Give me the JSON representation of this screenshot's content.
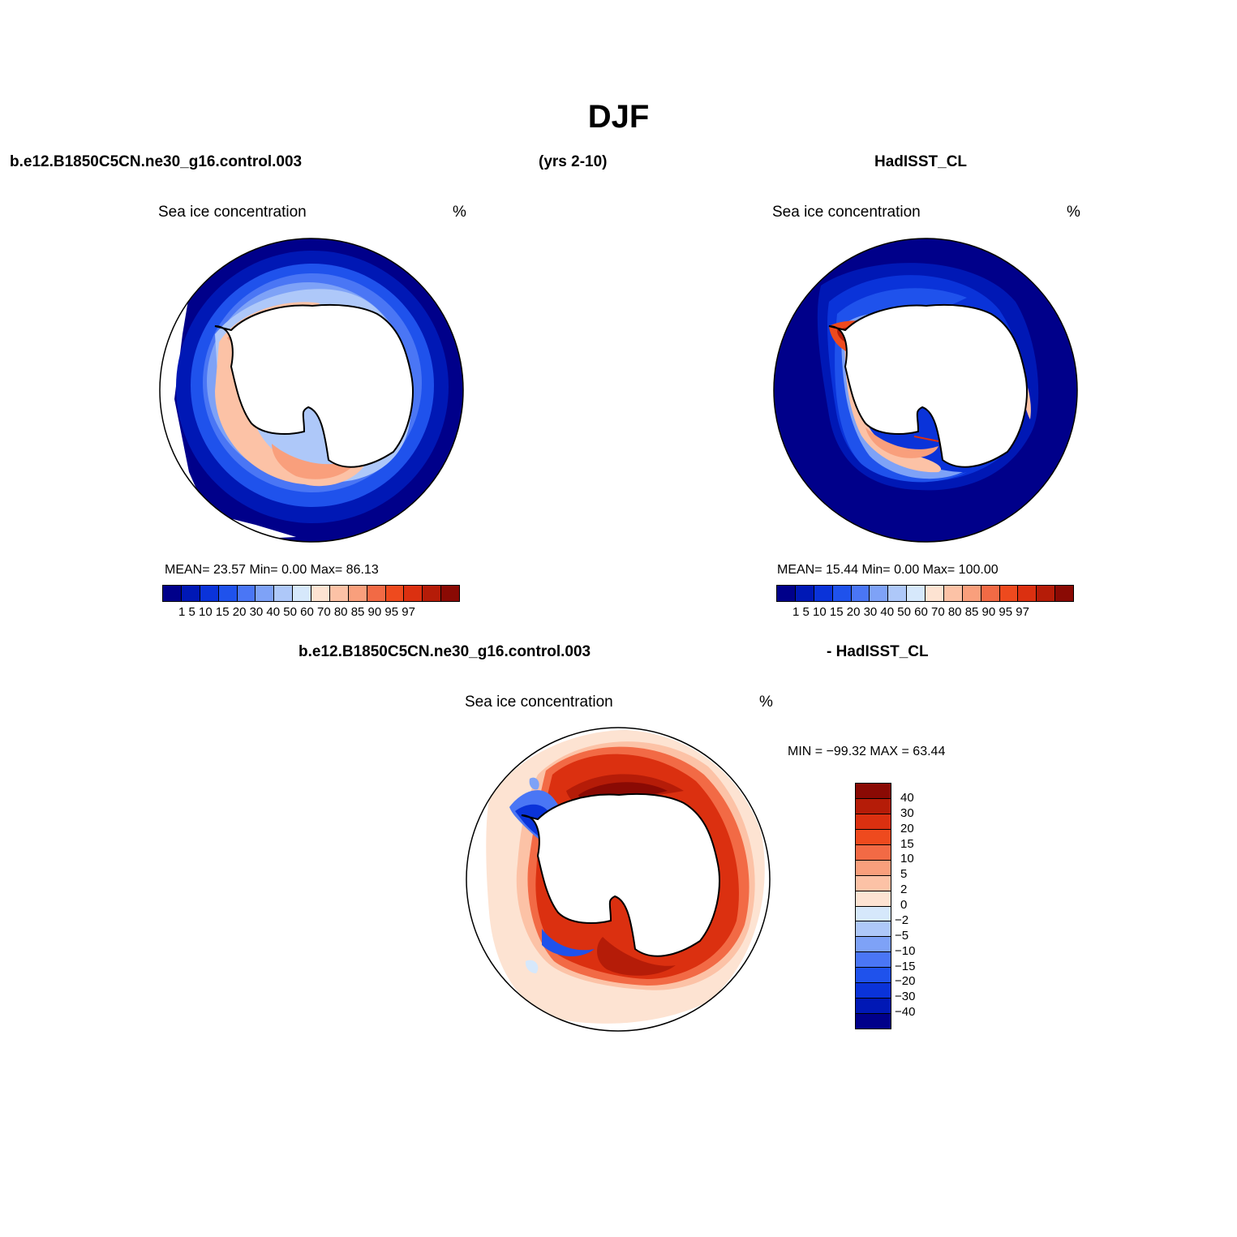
{
  "figure": {
    "title": "DJF",
    "case_name": "b.e12.B1850C5CN.ne30_g16.control.003",
    "years": "(yrs 2-10)",
    "obs_name": "HadISST_CL",
    "diff_case": "b.e12.B1850C5CN.ne30_g16.control.003",
    "diff_obs": "- HadISST_CL"
  },
  "panels": {
    "model": {
      "title": "Sea ice concentration",
      "unit": "%",
      "stats": "MEAN=   23.57   Min=    0.00   Max=   86.13",
      "colorbar_ticks": "1   5  10 15 20 30 40 50 60 70 80 85 90 95 97"
    },
    "obs": {
      "title": "Sea ice concentration",
      "unit": "%",
      "stats": "MEAN=   15.44   Min=    0.00   Max=  100.00",
      "colorbar_ticks": "1   5  10 15 20 30 40 50 60 70 80 85 90 95 97"
    },
    "diff": {
      "title": "Sea ice concentration",
      "unit": "%",
      "stats": "MIN = −99.32  MAX =   63.44",
      "colorbar_labels": [
        "40",
        "30",
        "20",
        "15",
        "10",
        "5",
        "2",
        "0",
        "−2",
        "−5",
        "−10",
        "−15",
        "−20",
        "−30",
        "−40"
      ]
    }
  },
  "colors": {
    "concentration_scale": [
      "#00008a",
      "#0018b5",
      "#0a33d9",
      "#1f52ec",
      "#4a76f5",
      "#7ea2f7",
      "#aec8f9",
      "#d6e8fb",
      "#fde3d2",
      "#fcc2a6",
      "#f99f7c",
      "#f26a45",
      "#ee4a1e",
      "#db3010",
      "#b51c08",
      "#8a0a04"
    ],
    "difference_scale": [
      "#8a0a04",
      "#b51c08",
      "#db3010",
      "#ee4a1e",
      "#f26a45",
      "#f99f7c",
      "#fcc2a6",
      "#fde3d2",
      "#d6e8fb",
      "#aec8f9",
      "#7ea2f7",
      "#4a76f5",
      "#1f52ec",
      "#0a33d9",
      "#0018b5",
      "#00008a"
    ]
  }
}
